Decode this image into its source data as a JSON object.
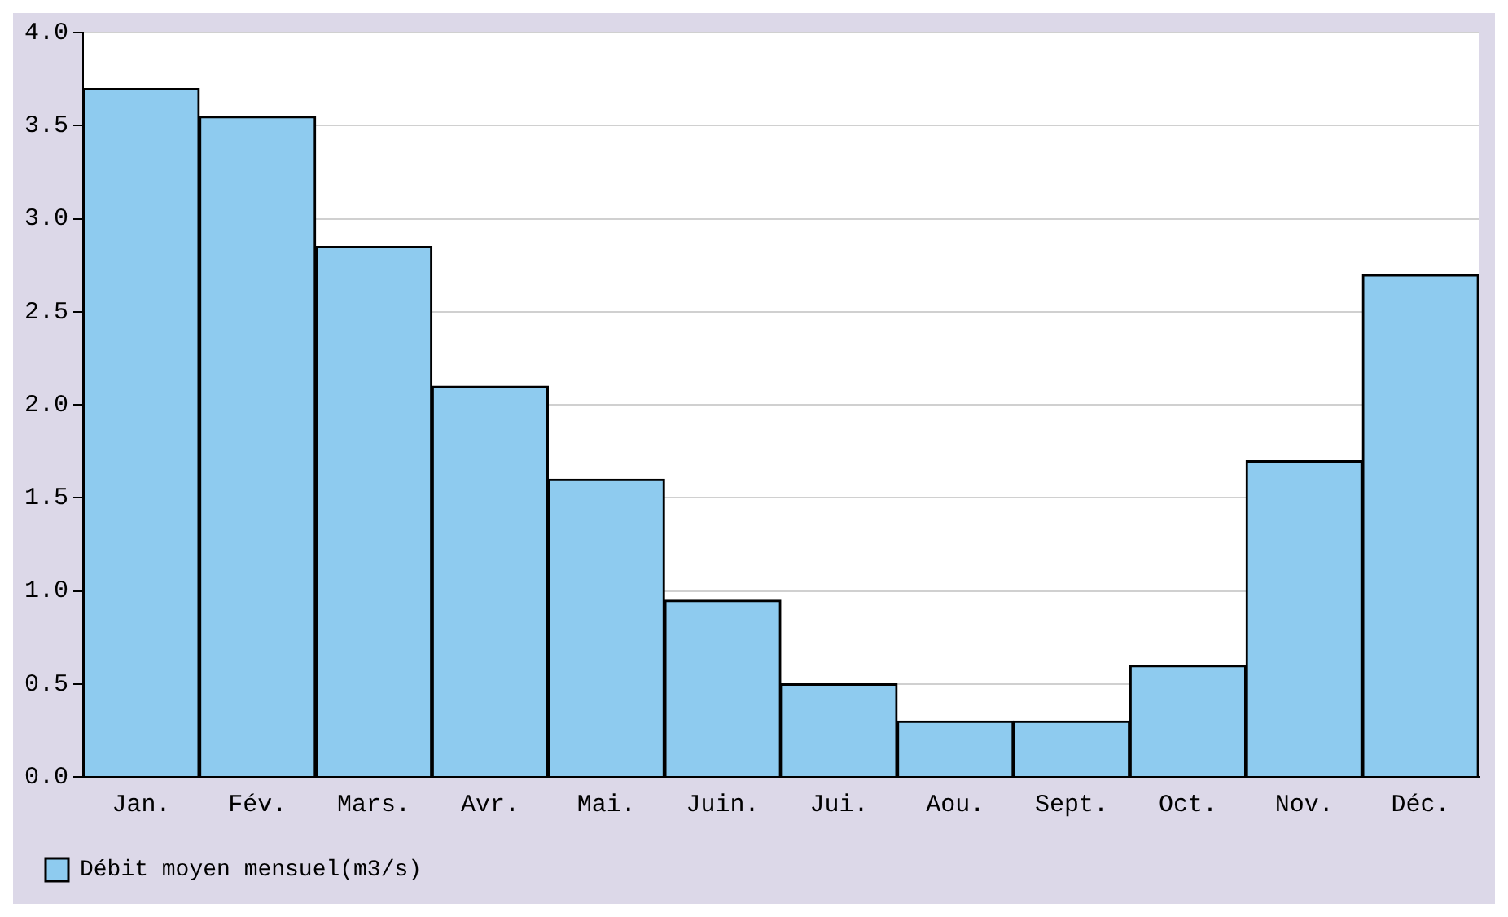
{
  "chart_data": {
    "type": "bar",
    "categories": [
      "Jan.",
      "Fév.",
      "Mars.",
      "Avr.",
      "Mai.",
      "Juin.",
      "Jui.",
      "Aou.",
      "Sept.",
      "Oct.",
      "Nov.",
      "Déc."
    ],
    "series": [
      {
        "name": "Débit moyen mensuel(m3/s)",
        "color": "#8ecbef",
        "values": [
          3.7,
          3.55,
          2.85,
          2.1,
          1.6,
          0.95,
          0.5,
          0.3,
          0.3,
          0.6,
          1.7,
          2.7
        ]
      }
    ],
    "ylim": [
      0,
      4
    ],
    "yticks": [
      {
        "value": 0,
        "label": "0.0"
      },
      {
        "value": 0.5,
        "label": "0.5"
      },
      {
        "value": 1,
        "label": "1.0"
      },
      {
        "value": 1.5,
        "label": "1.5"
      },
      {
        "value": 2,
        "label": "2.0"
      },
      {
        "value": 2.5,
        "label": "2.5"
      },
      {
        "value": 3,
        "label": "3.0"
      },
      {
        "value": 3.5,
        "label": "3.5"
      },
      {
        "value": 4,
        "label": "4.0"
      }
    ],
    "grid": "y",
    "legend": "bottom"
  }
}
